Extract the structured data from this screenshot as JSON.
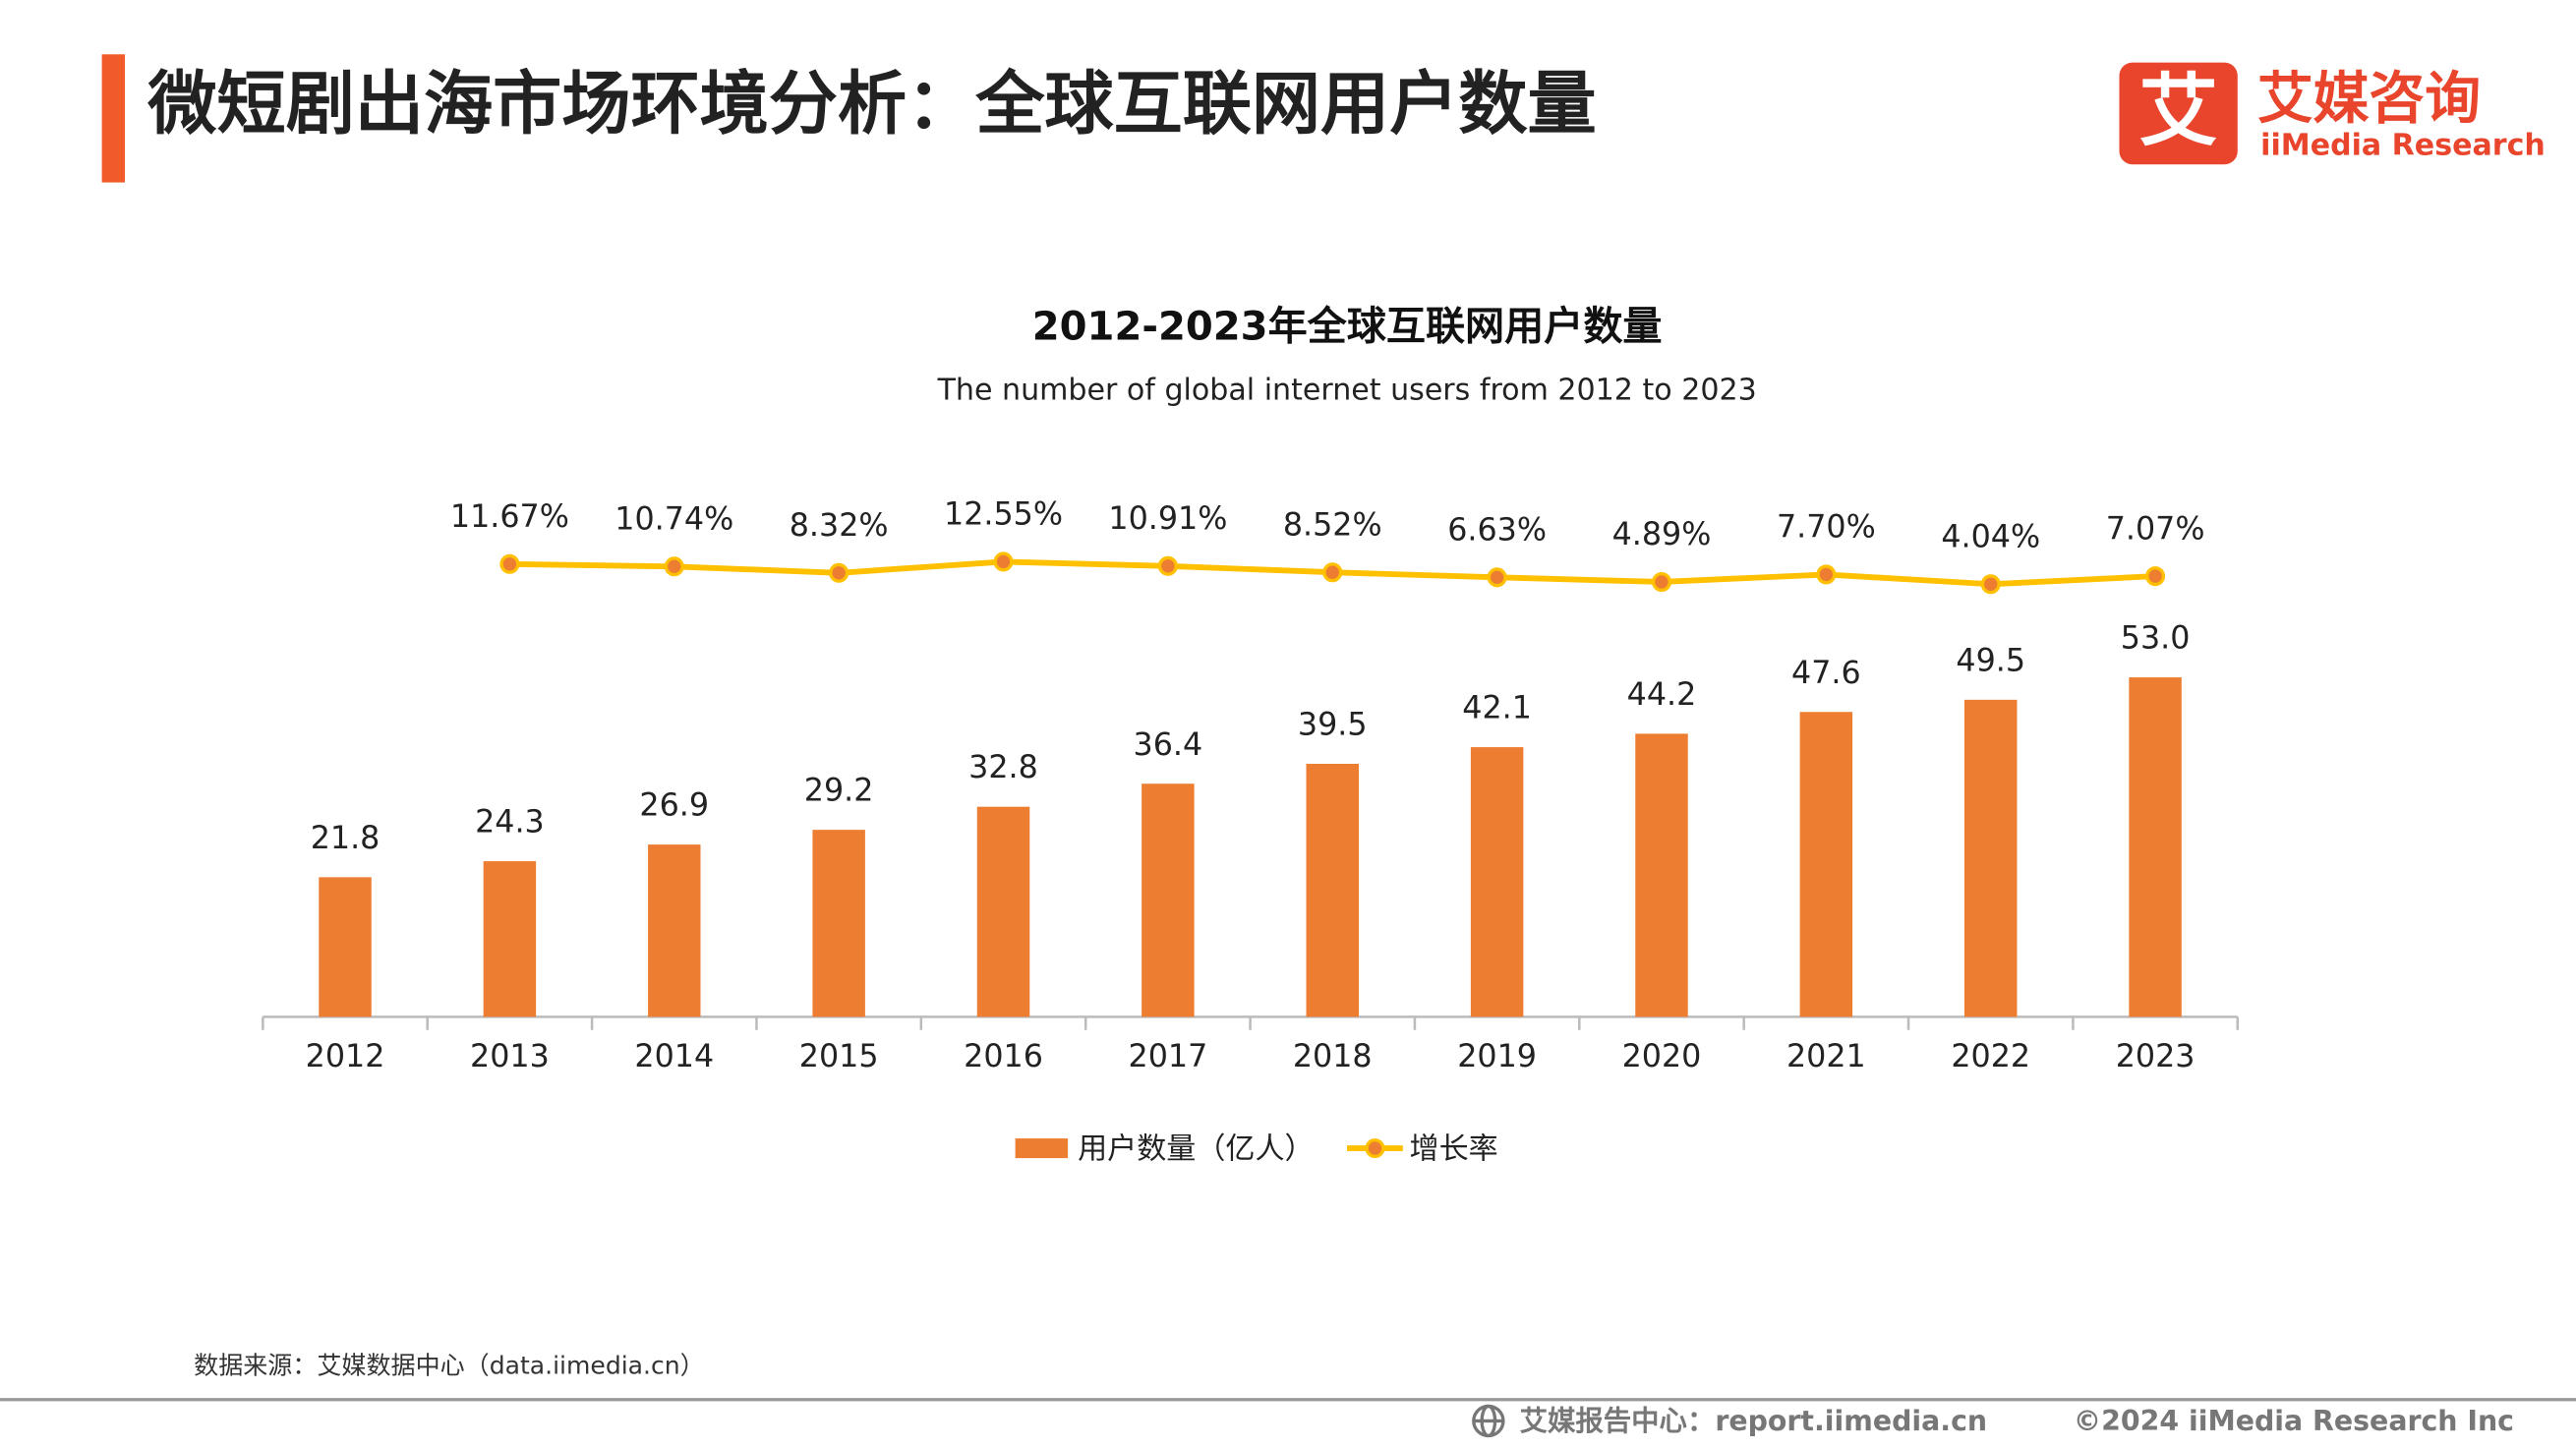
{
  "header": {
    "title": "微短剧出海市场环境分析：全球互联网用户数量",
    "logo_mark": "艾",
    "logo_cn": "艾媒咨询",
    "logo_en": "iiMedia Research"
  },
  "chart_data": {
    "type": "bar_line",
    "title": "2012-2023年全球互联网用户数量",
    "subtitle": "The number of global internet users from 2012 to 2023",
    "categories": [
      "2012",
      "2013",
      "2014",
      "2015",
      "2016",
      "2017",
      "2018",
      "2019",
      "2020",
      "2021",
      "2022",
      "2023"
    ],
    "series": [
      {
        "name": "用户数量（亿人）",
        "type": "bar",
        "color": "#ED7D31",
        "values": [
          21.8,
          24.3,
          26.9,
          29.2,
          32.8,
          36.4,
          39.5,
          42.1,
          44.2,
          47.6,
          49.5,
          53.0
        ],
        "value_labels": [
          "21.8",
          "24.3",
          "26.9",
          "29.2",
          "32.8",
          "36.4",
          "39.5",
          "42.1",
          "44.2",
          "47.6",
          "49.5",
          "53.0"
        ]
      },
      {
        "name": "增长率",
        "type": "line",
        "axis": "y2",
        "color": "#FFC000",
        "marker_color": "#ED7D31",
        "values": [
          null,
          11.67,
          10.74,
          8.32,
          12.55,
          10.91,
          8.52,
          6.63,
          4.89,
          7.7,
          4.04,
          7.07
        ],
        "value_labels": [
          null,
          "11.67%",
          "10.74%",
          "8.32%",
          "12.55%",
          "10.91%",
          "8.52%",
          "6.63%",
          "4.89%",
          "7.70%",
          "4.04%",
          "7.07%"
        ]
      }
    ],
    "ylim": [
      0,
      70
    ],
    "y2lim": [
      -160,
      10
    ],
    "legend": "bottom"
  },
  "footer": {
    "source": "数据来源：艾媒数据中心（data.iimedia.cn）",
    "report_site": "艾媒报告中心：report.iimedia.cn",
    "copyright": "©2024  iiMedia Research  Inc"
  }
}
